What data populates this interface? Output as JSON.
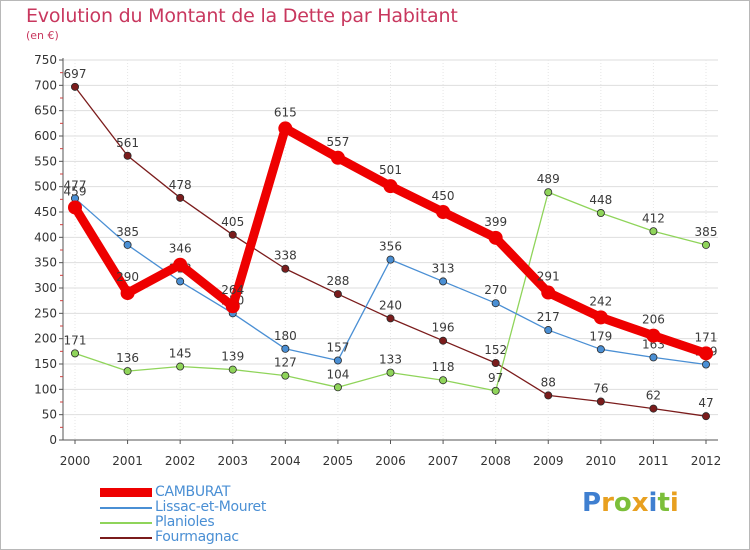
{
  "title": "Evolution du Montant de la Dette par Habitant",
  "subtitle": "(en €)",
  "logo": {
    "text": "Proxiti",
    "letters": [
      {
        "ch": "P",
        "color": "#3f7fd0"
      },
      {
        "ch": "r",
        "color": "#e8a020"
      },
      {
        "ch": "o",
        "color": "#7cbf3a"
      },
      {
        "ch": "x",
        "color": "#e8a020"
      },
      {
        "ch": "i",
        "color": "#3f7fd0"
      },
      {
        "ch": "t",
        "color": "#7cbf3a"
      },
      {
        "ch": "i",
        "color": "#e8a020"
      }
    ]
  },
  "chart_data": {
    "type": "line",
    "x": [
      "2000",
      "2001",
      "2002",
      "2003",
      "2004",
      "2005",
      "2006",
      "2007",
      "2008",
      "2009",
      "2010",
      "2011",
      "2012"
    ],
    "ylim": [
      0,
      750
    ],
    "yticks": [
      "0",
      "50",
      "100",
      "150",
      "200",
      "250",
      "300",
      "350",
      "400",
      "450",
      "500",
      "550",
      "600",
      "650",
      "700",
      "750"
    ],
    "grid": true,
    "legend_position": "bottom-left",
    "series": [
      {
        "name": "Fourmagnac",
        "color": "#7b1c1c",
        "style": "thin",
        "values": [
          697,
          561,
          478,
          405,
          338,
          288,
          240,
          196,
          152,
          88,
          76,
          62,
          47
        ],
        "labels": [
          "697",
          "561",
          "478",
          "405",
          "338",
          "288",
          "240",
          "196",
          "152",
          "88",
          "76",
          "62",
          "47"
        ]
      },
      {
        "name": "Planioles",
        "color": "#8fd45a",
        "style": "thin",
        "values": [
          171,
          136,
          145,
          139,
          127,
          104,
          133,
          118,
          97,
          489,
          448,
          412,
          385
        ],
        "labels": [
          "171",
          "136",
          "145",
          "139",
          "127",
          "104",
          "133",
          "118",
          "97",
          "489",
          "448",
          "412",
          "385"
        ]
      },
      {
        "name": "Lissac-et-Mouret",
        "color": "#4a8fd4",
        "style": "thin",
        "values": [
          477,
          385,
          313,
          250,
          180,
          157,
          356,
          313,
          270,
          217,
          179,
          163,
          149
        ],
        "labels": [
          "477",
          "385",
          "313",
          "250",
          "180",
          "157",
          "356",
          "313",
          "270",
          "217",
          "179",
          "163",
          "149"
        ]
      },
      {
        "name": "CAMBURAT",
        "color": "#ee0000",
        "style": "thick",
        "values": [
          459,
          290,
          346,
          264,
          615,
          557,
          501,
          450,
          399,
          291,
          242,
          206,
          171
        ],
        "labels": [
          "459",
          "290",
          "346",
          "264",
          "615",
          "557",
          "501",
          "450",
          "399",
          "291",
          "242",
          "206",
          "171"
        ]
      }
    ],
    "legend": [
      "CAMBURAT",
      "Lissac-et-Mouret",
      "Planioles",
      "Fourmagnac"
    ]
  }
}
